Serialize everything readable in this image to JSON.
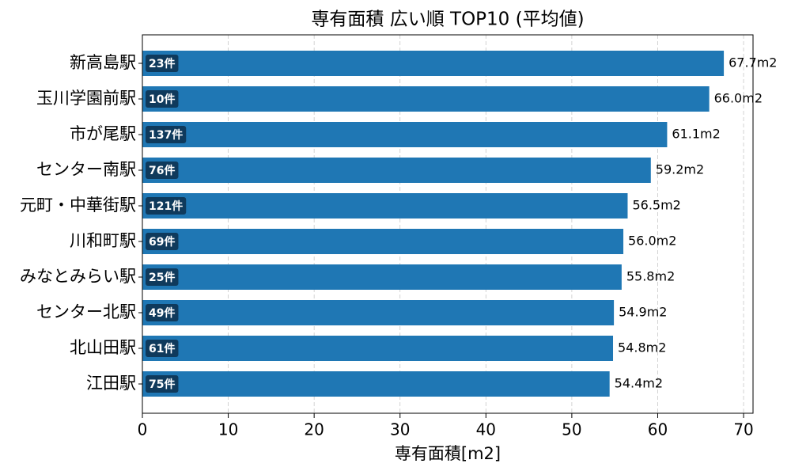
{
  "chart_data": {
    "type": "barh",
    "title": "専有面積 広い順 TOP10 (平均値)",
    "xlabel": "専有面積[m2]",
    "categories": [
      "新高島駅",
      "玉川学園前駅",
      "市が尾駅",
      "センター南駅",
      "元町・中華街駅",
      "川和町駅",
      "みなとみらい駅",
      "センター北駅",
      "北山田駅",
      "江田駅"
    ],
    "values": [
      67.7,
      66.0,
      61.1,
      59.2,
      56.5,
      56.0,
      55.8,
      54.9,
      54.8,
      54.4
    ],
    "value_labels": [
      "67.7m2",
      "66.0m2",
      "61.1m2",
      "59.2m2",
      "56.5m2",
      "56.0m2",
      "55.8m2",
      "54.9m2",
      "54.8m2",
      "54.4m2"
    ],
    "count_labels": [
      "23件",
      "10件",
      "137件",
      "76件",
      "121件",
      "69件",
      "25件",
      "49件",
      "61件",
      "75件"
    ],
    "color": "#1f77b4",
    "badge_color": "#0f3a5c",
    "xlim": [
      0,
      71.1
    ],
    "xticks": [
      0,
      10,
      20,
      30,
      40,
      50,
      60,
      70
    ],
    "grid": true
  }
}
